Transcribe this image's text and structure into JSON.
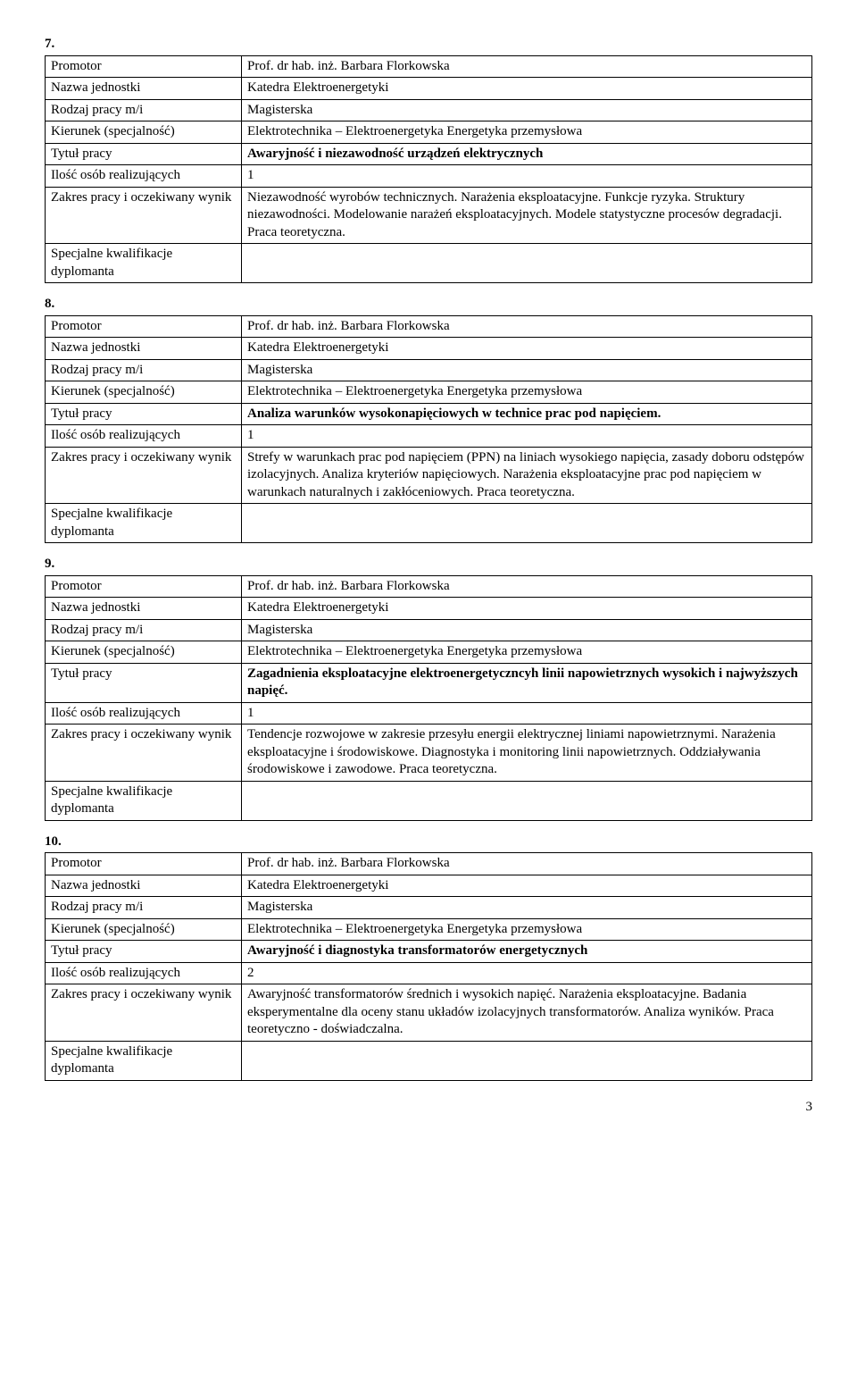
{
  "labels": {
    "promotor": "Promotor",
    "nazwa": "Nazwa jednostki",
    "rodzaj": "Rodzaj pracy m/i",
    "kierunek": "Kierunek (specjalność)",
    "tytul": "Tytuł pracy",
    "ilosc": "Ilość osób realizujących",
    "zakres": "Zakres pracy i oczekiwany wynik",
    "specjalne": "Specjalne kwalifikacje dyplomanta",
    "specjalne_split": "Specjalne kwalifikacje\ndyplomanta"
  },
  "common": {
    "promotor": "Prof. dr hab. inż. Barbara Florkowska",
    "nazwa": "Katedra Elektroenergetyki",
    "rodzaj": "Magisterska",
    "kierunek": "Elektrotechnika – Elektroenergetyka  Energetyka przemysłowa"
  },
  "sections": {
    "s7": {
      "num": "7.",
      "tytul": "Awaryjność i niezawodność urządzeń elektrycznych",
      "ilosc": "1",
      "zakres": "Niezawodność wyrobów technicznych. Narażenia eksploatacyjne. Funkcje ryzyka. Struktury niezawodności. Modelowanie narażeń eksploatacyjnych. Modele statystyczne procesów degradacji. Praca teoretyczna.",
      "specjalne": ""
    },
    "s8": {
      "num": "8.",
      "tytul": "Analiza warunków wysokonapięciowych w technice prac pod napięciem.",
      "ilosc": "1",
      "zakres": "Strefy w warunkach prac pod napięciem (PPN) na liniach wysokiego napięcia, zasady doboru odstępów izolacyjnych. Analiza kryteriów napięciowych. Narażenia eksploatacyjne prac pod napięciem w warunkach naturalnych i zakłóceniowych. Praca teoretyczna.",
      "specjalne": ""
    },
    "s9": {
      "num": "9.",
      "tytul": "Zagadnienia eksploatacyjne elektroenergetyczncyh linii napowietrznych wysokich i najwyższych napięć.",
      "ilosc": "1",
      "zakres": "Tendencje rozwojowe w zakresie przesyłu energii elektrycznej liniami napowietrznymi. Narażenia eksploatacyjne i środowiskowe. Diagnostyka i monitoring linii napowietrznych. Oddziaływania środowiskowe i zawodowe. Praca teoretyczna.",
      "specjalne": ""
    },
    "s10": {
      "num": "10.",
      "tytul": "Awaryjność i diagnostyka transformatorów energetycznych",
      "ilosc": "2",
      "zakres": "Awaryjność transformatorów średnich i wysokich napięć. Narażenia eksploatacyjne. Badania eksperymentalne dla oceny stanu układów izolacyjnych transformatorów. Analiza wyników. Praca teoretyczno - doświadczalna.",
      "specjalne": ""
    }
  },
  "page_number": "3"
}
